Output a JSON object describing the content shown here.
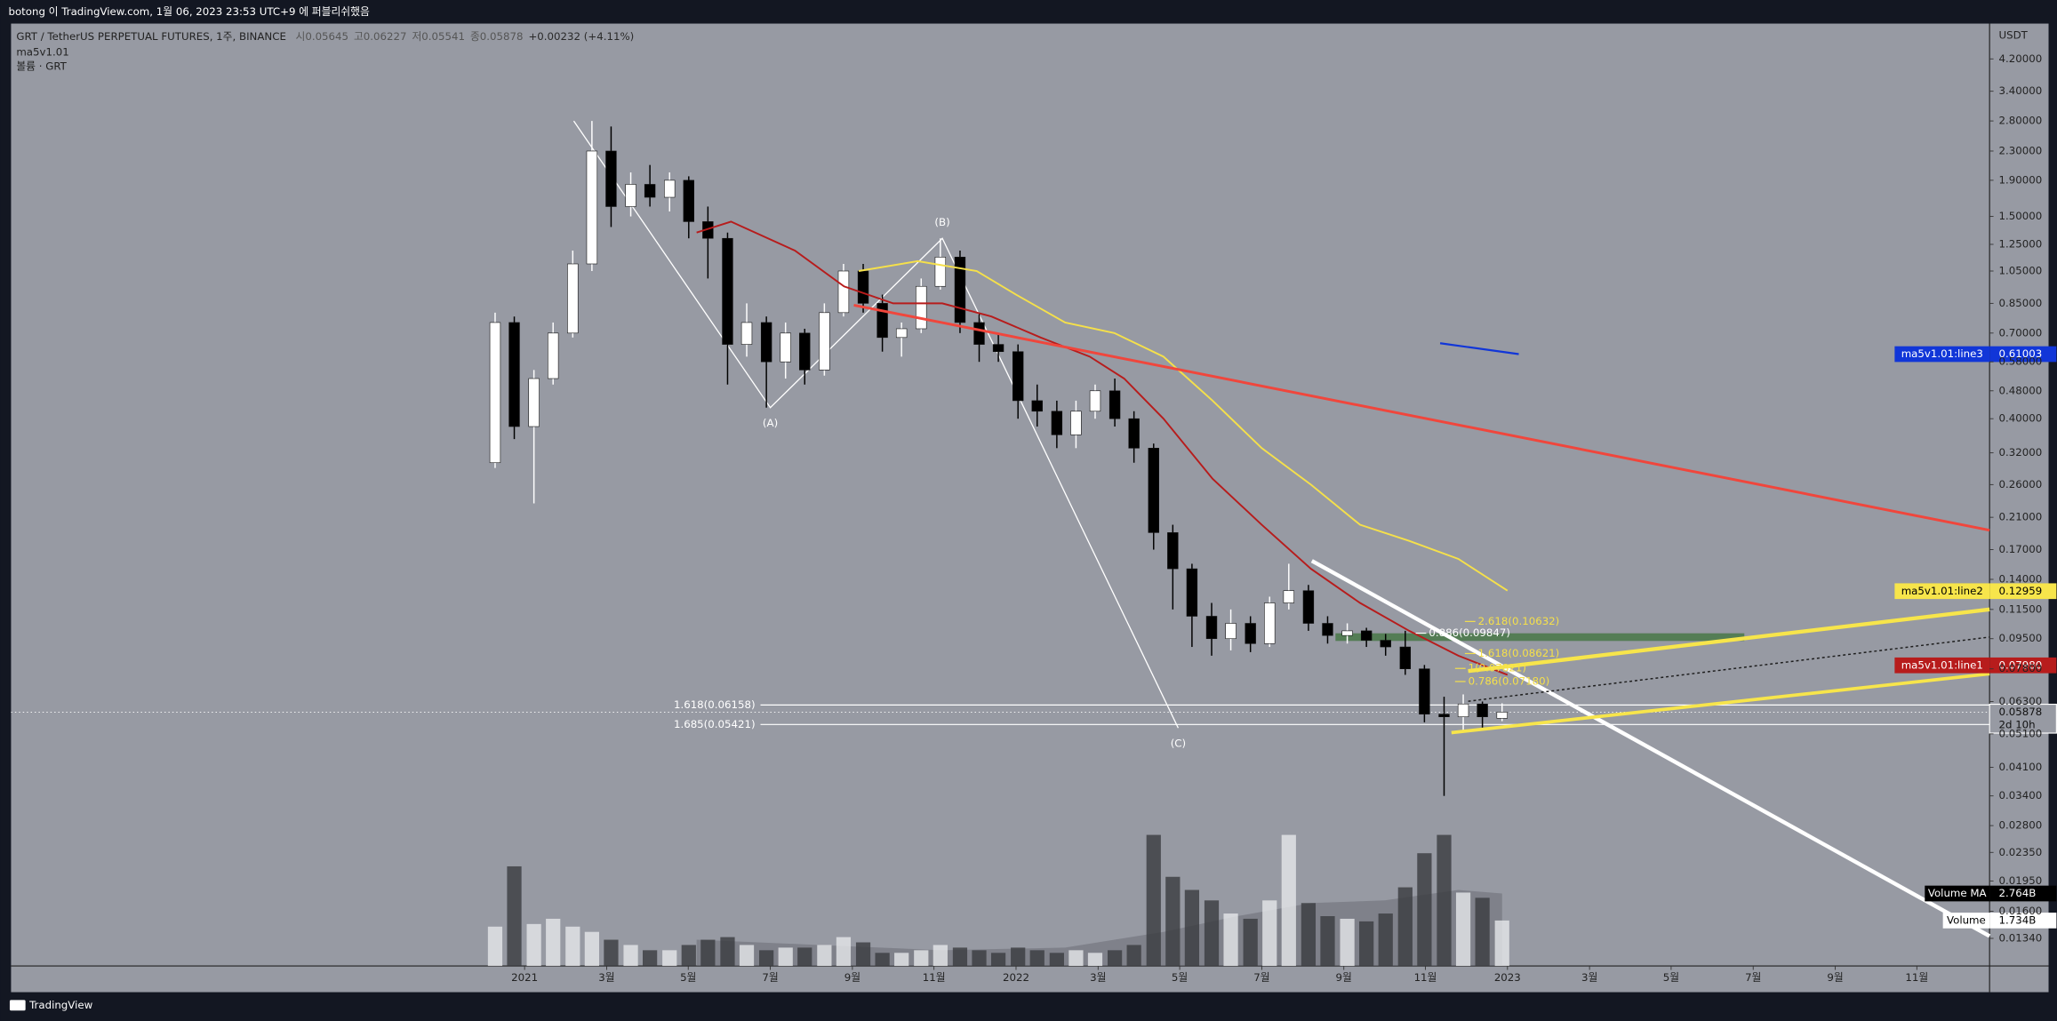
{
  "topbar": {
    "text": "botong 이 TradingView.com, 1월 06, 2023 23:53 UTC+9 에 퍼블리쉬했음"
  },
  "footer": {
    "brand": "TradingView"
  },
  "chart_data": {
    "type": "candlestick",
    "title": "GRT / TetherUS PERPETUAL FUTURES, 1주, BINANCE",
    "ohlc_labels": [
      "시0.05645",
      "고0.06227",
      "저0.05541",
      "종0.05878",
      "+0.00232 (+4.11%)"
    ],
    "indicators": [
      "ma5v1.01",
      "볼륨 · GRT"
    ],
    "currency": "USDT",
    "log_scale": true,
    "grid": false,
    "background": "#979aa3",
    "up_color": "#ffffff",
    "down_color": "#000000",
    "xlim": [
      2019.955,
      2023.981
    ],
    "ylim": [
      0.01119,
      5.29
    ],
    "volume_ylim": [
      0,
      35.95
    ],
    "xticks": [
      2021,
      {
        "value": 2021.167,
        "label": "3월"
      },
      {
        "value": 2021.333,
        "label": "5월"
      },
      {
        "value": 2021.5,
        "label": "7월"
      },
      {
        "value": 2021.667,
        "label": "9월"
      },
      {
        "value": 2021.833,
        "label": "11월"
      },
      2022,
      {
        "value": 2022.167,
        "label": "3월"
      },
      {
        "value": 2022.333,
        "label": "5월"
      },
      {
        "value": 2022.5,
        "label": "7월"
      },
      {
        "value": 2022.667,
        "label": "9월"
      },
      {
        "value": 2022.833,
        "label": "11월"
      },
      2023,
      {
        "value": 2023.167,
        "label": "3월"
      },
      {
        "value": 2023.333,
        "label": "5월"
      },
      {
        "value": 2023.5,
        "label": "7월"
      },
      {
        "value": 2023.667,
        "label": "9월"
      },
      {
        "value": 2023.833,
        "label": "11월"
      }
    ],
    "yticks": [
      {
        "value": 4.2,
        "label": "4.20000"
      },
      {
        "value": 3.4,
        "label": "3.40000"
      },
      {
        "value": 2.8,
        "label": "2.80000"
      },
      {
        "value": 2.3,
        "label": "2.30000"
      },
      {
        "value": 1.9,
        "label": "1.90000"
      },
      {
        "value": 1.5,
        "label": "1.50000"
      },
      {
        "value": 1.25,
        "label": "1.25000"
      },
      {
        "value": 1.05,
        "label": "1.05000"
      },
      {
        "value": 0.85,
        "label": "0.85000"
      },
      {
        "value": 0.7,
        "label": "0.70000"
      },
      {
        "value": 0.58,
        "label": "0.58000"
      },
      {
        "value": 0.48,
        "label": "0.48000"
      },
      {
        "value": 0.4,
        "label": "0.40000"
      },
      {
        "value": 0.32,
        "label": "0.32000"
      },
      {
        "value": 0.26,
        "label": "0.26000"
      },
      {
        "value": 0.21,
        "label": "0.21000"
      },
      {
        "value": 0.17,
        "label": "0.17000"
      },
      {
        "value": 0.14,
        "label": "0.14000"
      },
      {
        "value": 0.115,
        "label": "0.11500"
      },
      {
        "value": 0.095,
        "label": "0.09500"
      },
      {
        "value": 0.078,
        "label": "0.07800"
      },
      {
        "value": 0.063,
        "label": "0.06300"
      },
      {
        "value": 0.051,
        "label": "0.05100"
      },
      {
        "value": 0.041,
        "label": "0.04100"
      },
      {
        "value": 0.034,
        "label": "0.03400"
      },
      {
        "value": 0.028,
        "label": "0.02800"
      },
      {
        "value": 0.0235,
        "label": "0.02350"
      },
      {
        "value": 0.0195,
        "label": "0.01950"
      },
      {
        "value": 0.016,
        "label": "0.01600"
      },
      {
        "value": 0.0134,
        "label": "0.01340"
      }
    ],
    "candles": {
      "x": [
        2020.94,
        2020.979,
        2021.019,
        2021.058,
        2021.098,
        2021.137,
        2021.176,
        2021.216,
        2021.255,
        2021.295,
        2021.334,
        2021.373,
        2021.413,
        2021.452,
        2021.492,
        2021.531,
        2021.57,
        2021.61,
        2021.649,
        2021.689,
        2021.728,
        2021.767,
        2021.807,
        2021.846,
        2021.886,
        2021.925,
        2021.964,
        2022.004,
        2022.043,
        2022.083,
        2022.122,
        2022.161,
        2022.201,
        2022.24,
        2022.28,
        2022.319,
        2022.358,
        2022.398,
        2022.437,
        2022.477,
        2022.516,
        2022.555,
        2022.595,
        2022.634,
        2022.674,
        2022.713,
        2022.752,
        2022.792,
        2022.831,
        2022.871,
        2022.91,
        2022.949,
        2022.989
      ],
      "open": [
        0.3,
        0.75,
        0.38,
        0.52,
        0.7,
        1.1,
        2.3,
        1.6,
        1.85,
        1.7,
        1.9,
        1.45,
        1.3,
        0.65,
        0.75,
        0.58,
        0.7,
        0.55,
        0.8,
        1.05,
        0.85,
        0.68,
        0.72,
        0.95,
        1.15,
        0.75,
        0.65,
        0.62,
        0.45,
        0.42,
        0.36,
        0.42,
        0.48,
        0.4,
        0.33,
        0.19,
        0.15,
        0.11,
        0.095,
        0.105,
        0.092,
        0.12,
        0.13,
        0.105,
        0.097,
        0.1,
        0.094,
        0.09,
        0.078,
        0.058,
        0.057,
        0.062,
        0.05645
      ],
      "high": [
        0.8,
        0.78,
        0.55,
        0.75,
        1.2,
        2.8,
        2.7,
        2.0,
        2.1,
        2.0,
        1.95,
        1.6,
        1.35,
        0.85,
        0.78,
        0.75,
        0.72,
        0.85,
        1.1,
        1.1,
        0.9,
        0.75,
        1.0,
        1.3,
        1.2,
        0.8,
        0.7,
        0.65,
        0.5,
        0.45,
        0.45,
        0.5,
        0.52,
        0.42,
        0.34,
        0.2,
        0.155,
        0.12,
        0.115,
        0.11,
        0.125,
        0.155,
        0.135,
        0.11,
        0.105,
        0.102,
        0.098,
        0.1,
        0.08,
        0.065,
        0.066,
        0.063,
        0.06227
      ],
      "low": [
        0.29,
        0.35,
        0.23,
        0.5,
        0.68,
        1.05,
        1.4,
        1.5,
        1.6,
        1.55,
        1.3,
        1.0,
        0.5,
        0.6,
        0.43,
        0.52,
        0.5,
        0.53,
        0.78,
        0.8,
        0.62,
        0.6,
        0.7,
        0.93,
        0.7,
        0.58,
        0.58,
        0.4,
        0.38,
        0.33,
        0.33,
        0.4,
        0.38,
        0.3,
        0.17,
        0.115,
        0.09,
        0.085,
        0.088,
        0.087,
        0.09,
        0.115,
        0.1,
        0.092,
        0.092,
        0.09,
        0.085,
        0.075,
        0.055,
        0.034,
        0.052,
        0.053,
        0.05541
      ],
      "close": [
        0.75,
        0.38,
        0.52,
        0.7,
        1.1,
        2.3,
        1.6,
        1.85,
        1.7,
        1.9,
        1.45,
        1.3,
        0.65,
        0.75,
        0.58,
        0.7,
        0.55,
        0.8,
        1.05,
        0.85,
        0.68,
        0.72,
        0.95,
        1.15,
        0.75,
        0.65,
        0.62,
        0.45,
        0.42,
        0.36,
        0.42,
        0.48,
        0.4,
        0.33,
        0.19,
        0.15,
        0.11,
        0.095,
        0.105,
        0.092,
        0.12,
        0.13,
        0.105,
        0.097,
        0.1,
        0.094,
        0.09,
        0.078,
        0.058,
        0.057,
        0.062,
        0.057,
        0.05878
      ],
      "volume": [
        1.5,
        3.8,
        1.6,
        1.8,
        1.5,
        1.3,
        1.0,
        0.8,
        0.6,
        0.6,
        0.8,
        1.0,
        1.1,
        0.8,
        0.6,
        0.7,
        0.7,
        0.8,
        1.1,
        0.9,
        0.5,
        0.5,
        0.6,
        0.8,
        0.7,
        0.6,
        0.5,
        0.7,
        0.6,
        0.5,
        0.6,
        0.5,
        0.6,
        0.8,
        5.0,
        3.4,
        2.9,
        2.5,
        2.0,
        1.8,
        2.5,
        5.0,
        2.4,
        1.9,
        1.8,
        1.7,
        2.0,
        3.0,
        4.3,
        5.0,
        2.8,
        2.6,
        1.734
      ]
    },
    "lines": [
      {
        "color": "#b71c1c",
        "x": [
          2021.35,
          2021.42,
          2021.55,
          2021.65,
          2021.75,
          2021.85,
          2021.95,
          2022.05,
          2022.15,
          2022.22,
          2022.3,
          2022.4,
          2022.5,
          2022.6,
          2022.7,
          2022.8,
          2022.9,
          2023.0
        ],
        "values": [
          1.35,
          1.45,
          1.2,
          0.95,
          0.85,
          0.85,
          0.78,
          0.68,
          0.6,
          0.52,
          0.4,
          0.27,
          0.2,
          0.15,
          0.12,
          0.1,
          0.085,
          0.075
        ]
      },
      {
        "color": "#f5e04a",
        "x": [
          2021.68,
          2021.8,
          2021.92,
          2022.0,
          2022.1,
          2022.2,
          2022.3,
          2022.4,
          2022.5,
          2022.6,
          2022.7,
          2022.8,
          2022.9,
          2023.0
        ],
        "values": [
          1.05,
          1.12,
          1.05,
          0.9,
          0.75,
          0.7,
          0.6,
          0.45,
          0.33,
          0.26,
          0.2,
          0.18,
          0.16,
          0.13
        ]
      }
    ],
    "volume_ma": {
      "x": [
        2021.35,
        2021.6,
        2021.85,
        2022.1,
        2022.3,
        2022.45,
        2022.6,
        2022.75,
        2022.9,
        2022.989
      ],
      "values": [
        1.0,
        0.8,
        0.6,
        0.7,
        1.3,
        1.9,
        2.4,
        2.5,
        2.9,
        2.764
      ]
    },
    "wave": {
      "x": [
        2021.1,
        2021.5,
        2021.85,
        2022.33
      ],
      "values": [
        2.8,
        0.43,
        1.3,
        0.053
      ],
      "labels": [
        "(A)",
        "(B)",
        "(C)"
      ]
    },
    "trendlines": [
      {
        "color": "#f0463c",
        "width": 2,
        "x": [
          2021.67,
          2023.981
        ],
        "values": [
          0.84,
          0.193
        ]
      },
      {
        "color": "#ffffff",
        "width": 3,
        "x": [
          2022.602,
          2023.981
        ],
        "values": [
          0.158,
          0.0136
        ]
      },
      {
        "color": "#f7e54b",
        "width": 3,
        "x": [
          2022.92,
          2023.981
        ],
        "values": [
          0.0769,
          0.115
        ]
      },
      {
        "color": "#f7e54b",
        "width": 2.5,
        "x": [
          2022.886,
          2023.981
        ],
        "values": [
          0.0514,
          0.0755
        ]
      },
      {
        "color": "#1e1e1e",
        "width": 1,
        "dash": true,
        "x": [
          2022.92,
          2023.981
        ],
        "values": [
          0.0631,
          0.096
        ]
      },
      {
        "color": "#1136d8",
        "width": 1.5,
        "x": [
          2022.863,
          2023.023
        ],
        "values": [
          0.655,
          0.61
        ]
      }
    ],
    "zone": {
      "color": "#4c7a4c",
      "x": [
        2022.65,
        2023.482
      ],
      "values": [
        0.0936,
        0.0984
      ]
    },
    "fib_levels": [
      {
        "value": 0.06158,
        "label": "1.618(0.06158)",
        "x": 2021.48
      },
      {
        "value": 0.05421,
        "label": "1.685(0.05421)",
        "x": 2021.48
      }
    ],
    "fib_labels": [
      {
        "x": 2022.94,
        "value": 0.10632,
        "label": "2.618(0.10632)",
        "color": "#f5e04a"
      },
      {
        "x": 2022.84,
        "value": 0.09847,
        "label": "0.886(0.09847)",
        "color": "#ffffff"
      },
      {
        "x": 2022.94,
        "value": 0.08621,
        "label": "1.618(0.08621)",
        "color": "#f5e04a"
      },
      {
        "x": 2022.92,
        "value": 0.07821,
        "label": "1(0.07821)",
        "color": "#f5e04a"
      },
      {
        "x": 2022.92,
        "value": 0.0718,
        "label": "0.786(0.07180)",
        "color": "#f5e04a"
      }
    ],
    "last_price": {
      "value": 0.05878,
      "countdown": "2d 10h"
    },
    "badges": [
      {
        "name": "ma5v1.01:line3",
        "price": 0.61003,
        "color": "#1136d8",
        "text_color": "#ffffff"
      },
      {
        "name": "ma5v1.01:line2",
        "price": 0.12959,
        "color": "#f7e54b",
        "text_color": "#000000"
      },
      {
        "name": "ma5v1.01:line1",
        "price": {
          "value": 0.0798,
          "label": "0.07980"
        },
        "color": "#b71c1c",
        "text_color": "#ffffff"
      }
    ],
    "volume_badges": [
      {
        "name": "Volume MA",
        "volume": {
          "value": 2.764,
          "label": "2.764B"
        },
        "color": "#000000",
        "text_color": "#ffffff"
      },
      {
        "name": "Volume",
        "volume": {
          "value": 1.734,
          "label": "1.734B"
        },
        "color": "#ffffff",
        "text_color": "#000000"
      }
    ]
  }
}
